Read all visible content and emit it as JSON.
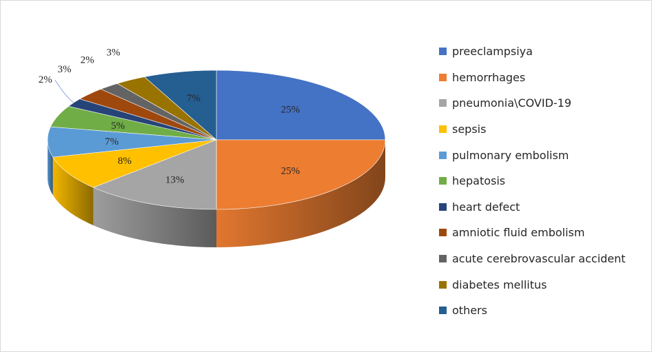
{
  "chart_data": {
    "type": "pie",
    "title": "",
    "three_d": true,
    "legend_position": "right",
    "slices": [
      {
        "label": "preeclampsiya",
        "value": 25,
        "display": "25%",
        "color": "#4472c4"
      },
      {
        "label": "hemorrhages",
        "value": 25,
        "display": "25%",
        "color": "#ed7d31"
      },
      {
        "label": "pneumonia\\COVID-19",
        "value": 13,
        "display": "13%",
        "color": "#a5a5a5"
      },
      {
        "label": "sepsis",
        "value": 8,
        "display": "8%",
        "color": "#ffc000"
      },
      {
        "label": "pulmonary embolism",
        "value": 7,
        "display": "7%",
        "color": "#5b9bd5"
      },
      {
        "label": "hepatosis",
        "value": 5,
        "display": "5%",
        "color": "#70ad47"
      },
      {
        "label": "heart defect",
        "value": 2,
        "display": "2%",
        "color": "#264478"
      },
      {
        "label": "amniotic fluid embolism",
        "value": 3,
        "display": "3%",
        "color": "#9e480e"
      },
      {
        "label": "acute cerebrovascular accident",
        "value": 2,
        "display": "2%",
        "color": "#636363"
      },
      {
        "label": "diabetes mellitus",
        "value": 3,
        "display": "3%",
        "color": "#997300"
      },
      {
        "label": "others",
        "value": 7,
        "display": "7%",
        "color": "#255e91"
      }
    ]
  }
}
